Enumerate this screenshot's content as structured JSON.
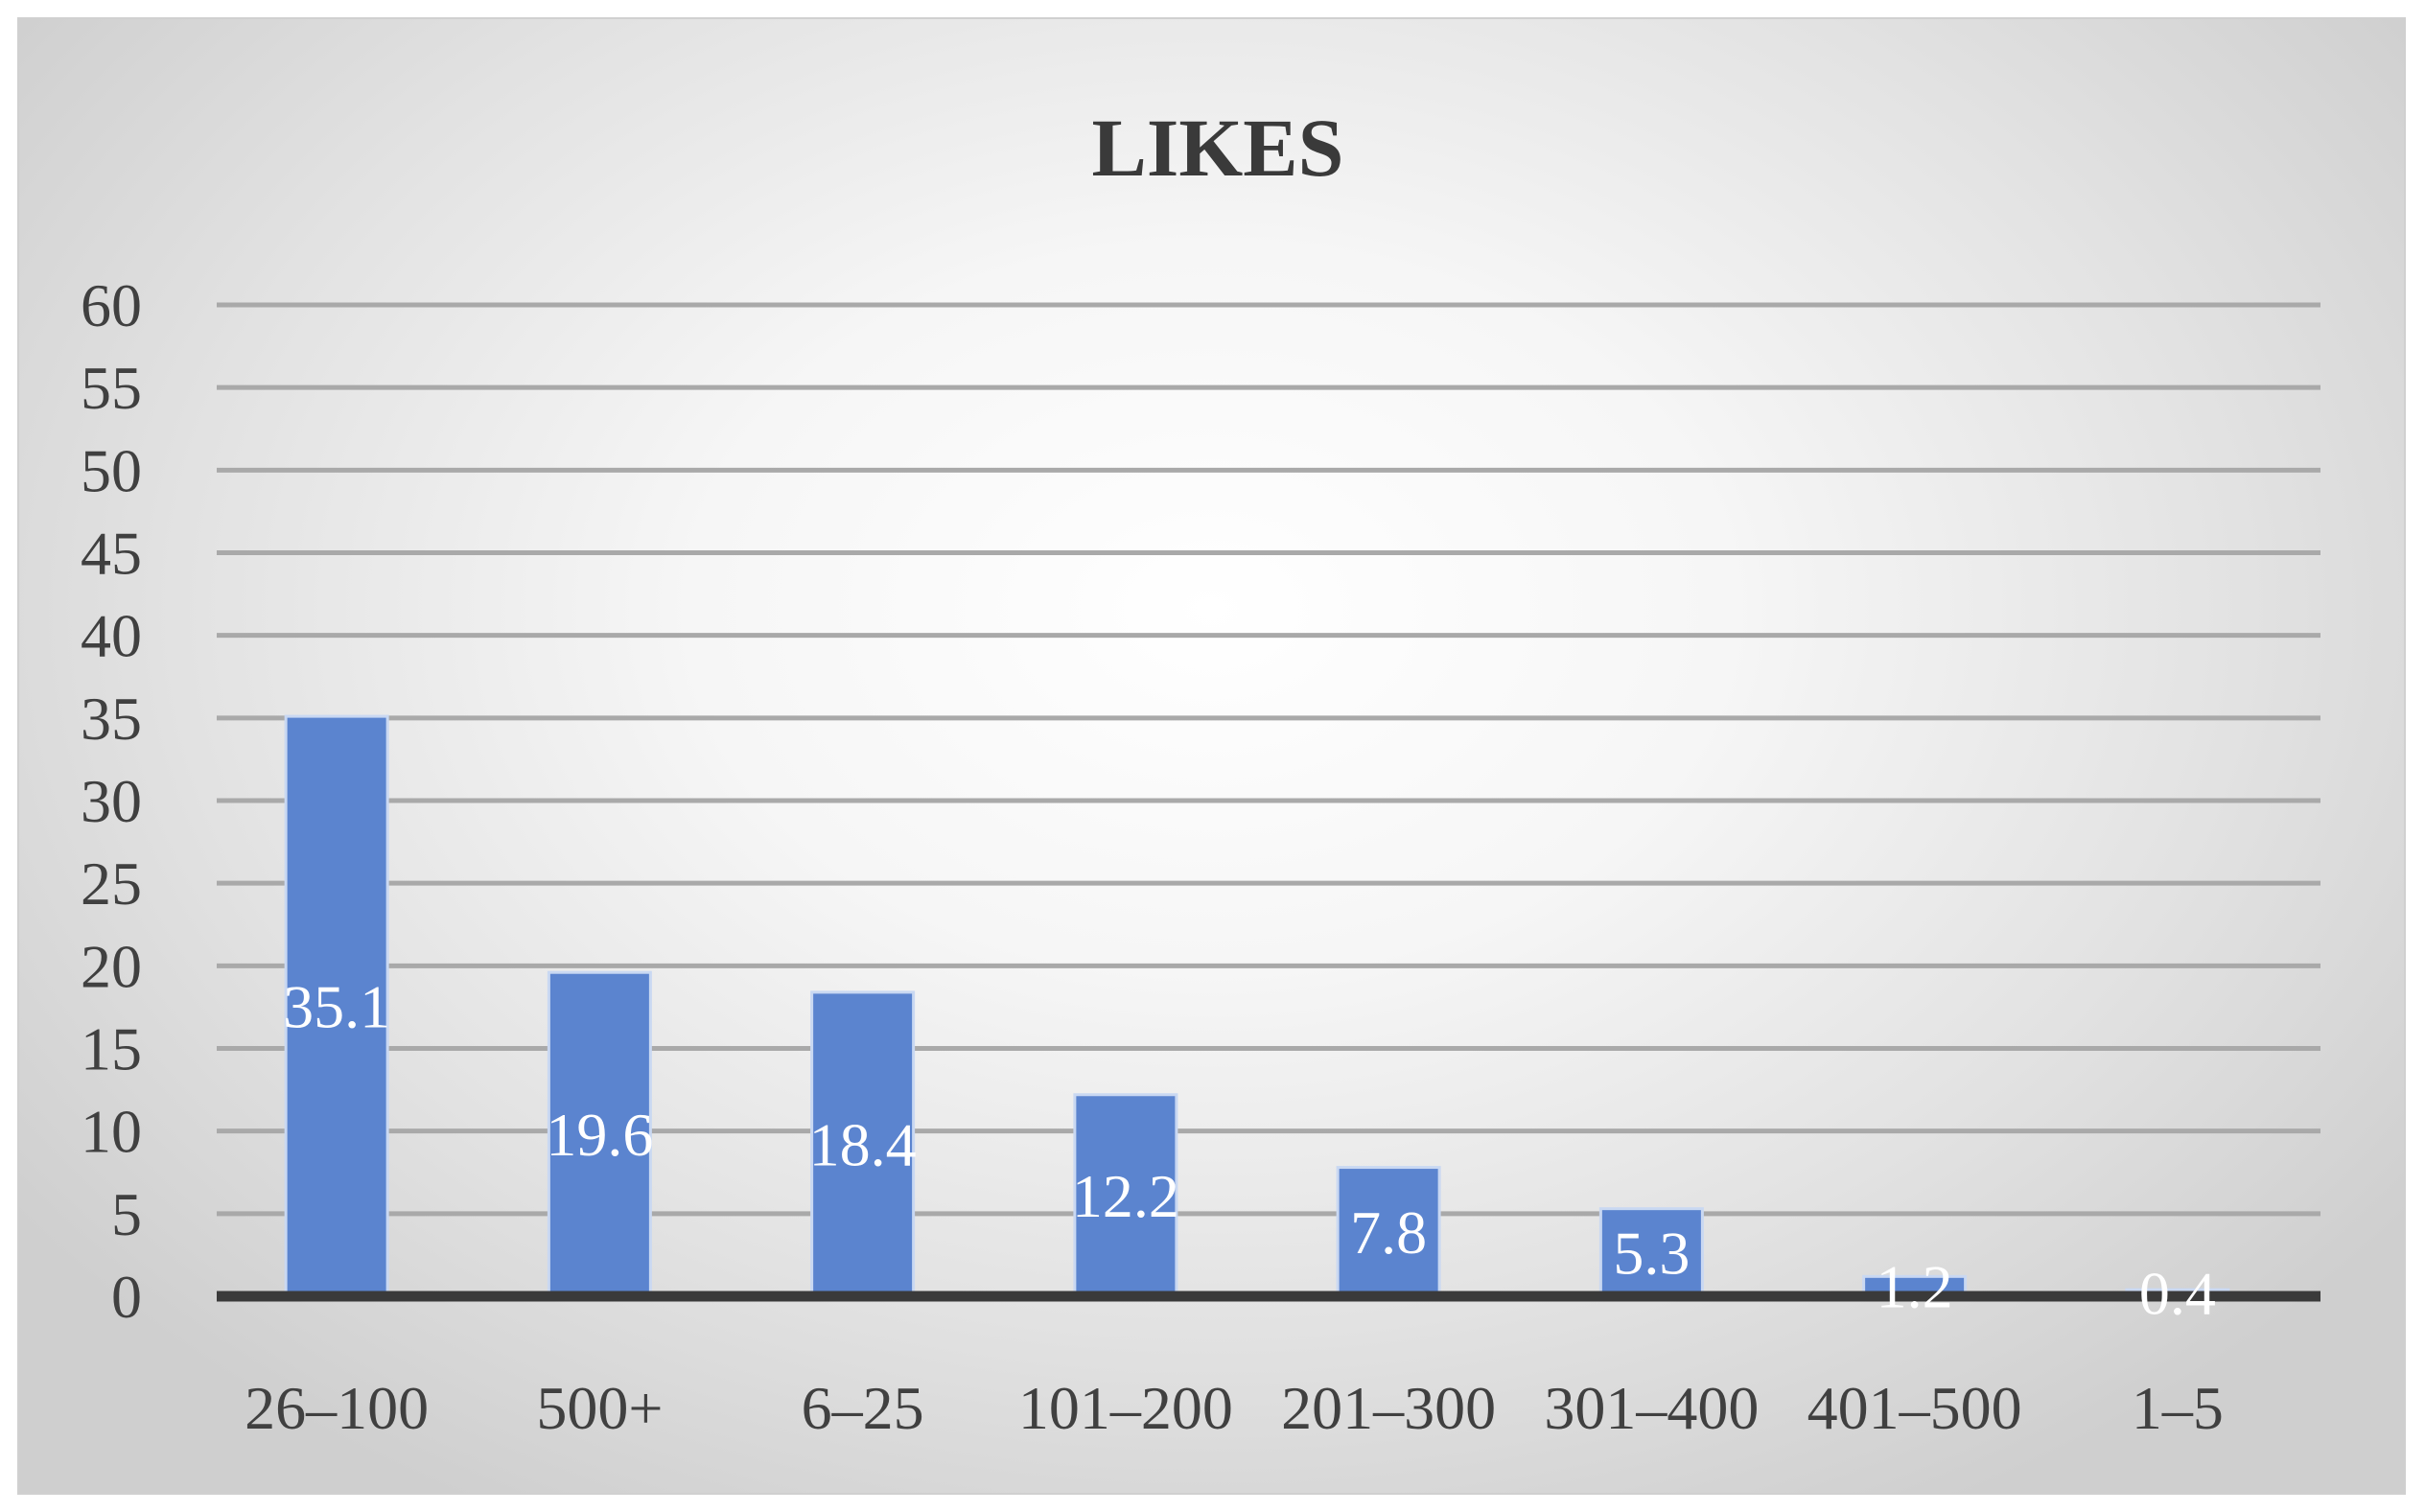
{
  "chart_data": {
    "type": "bar",
    "title": "LIKES",
    "xlabel": "",
    "ylabel": "",
    "categories": [
      "26–100",
      "500+",
      "6–25",
      "101–200",
      "201–300",
      "301–400",
      "401–500",
      "1–5"
    ],
    "values": [
      35.1,
      19.6,
      18.4,
      12.2,
      7.8,
      5.3,
      1.2,
      0.4
    ],
    "data_labels": [
      "35.1",
      "19.6",
      "18.4",
      "12.2",
      "7.8",
      "5.3",
      "1.2",
      "0.4"
    ],
    "ylim": [
      0,
      60
    ],
    "yticks": [
      "0",
      "5",
      "10",
      "15",
      "20",
      "25",
      "30",
      "35",
      "40",
      "45",
      "50",
      "55",
      "60"
    ],
    "grid": true,
    "legend": "none",
    "colors": {
      "bar": "#5b84cf",
      "bar_border": "#c9d8f2",
      "gridline": "#a9a9a9",
      "baseline": "#3a3a3a"
    }
  }
}
